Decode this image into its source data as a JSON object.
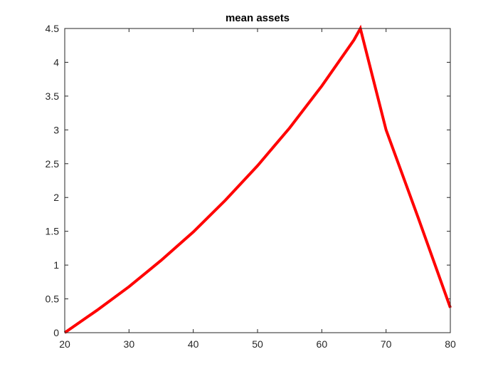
{
  "chart_data": {
    "type": "line",
    "title": "mean assets",
    "xlabel": "",
    "ylabel": "",
    "xlim": [
      20,
      80
    ],
    "ylim": [
      0,
      4.5
    ],
    "x_ticks": [
      20,
      30,
      40,
      50,
      60,
      70,
      80
    ],
    "y_ticks": [
      0,
      0.5,
      1,
      1.5,
      2,
      2.5,
      3,
      3.5,
      4,
      4.5
    ],
    "x_tick_labels": [
      "20",
      "30",
      "40",
      "50",
      "60",
      "70",
      "80"
    ],
    "y_tick_labels": [
      "0",
      "0.5",
      "1",
      "1.5",
      "2",
      "2.5",
      "3",
      "3.5",
      "4",
      "4.5"
    ],
    "grid": false,
    "line_color": "#ff0000",
    "series": [
      {
        "x": [
          20,
          25,
          30,
          35,
          40,
          45,
          50,
          55,
          60,
          65,
          66,
          70,
          75,
          80
        ],
        "y": [
          0,
          0.33,
          0.68,
          1.07,
          1.49,
          1.96,
          2.47,
          3.03,
          3.65,
          4.33,
          4.5,
          3.0,
          1.7,
          0.37
        ]
      }
    ]
  }
}
